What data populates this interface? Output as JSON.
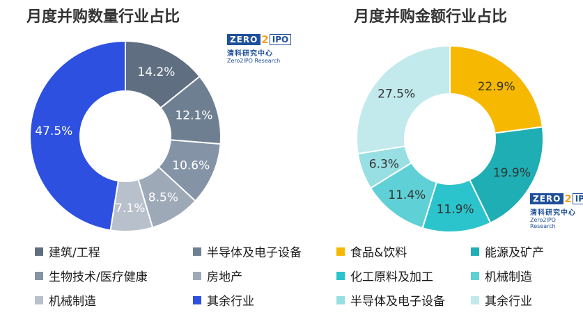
{
  "chart_data": [
    {
      "type": "pie",
      "title": "月度并购数量行业占比",
      "categories": [
        "建筑/工程",
        "半导体及电子设备",
        "生物技术/医疗健康",
        "房地产",
        "机械制造",
        "其余行业"
      ],
      "values": [
        14.2,
        12.1,
        10.6,
        8.5,
        7.1,
        47.5
      ],
      "labels": [
        "14.2%",
        "12.1%",
        "10.6%",
        "8.5%",
        "7.1%",
        "47.5%"
      ],
      "colors": [
        "#5f6e80",
        "#6f7f92",
        "#8493a5",
        "#9ea9b8",
        "#b8c0cb",
        "#2e50e0"
      ],
      "legend_position": "bottom"
    },
    {
      "type": "pie",
      "title": "月度并购金额行业占比",
      "categories": [
        "食品&饮料",
        "能源及矿产",
        "化工原料及加工",
        "机械制造",
        "半导体及电子设备",
        "其余行业"
      ],
      "values": [
        22.9,
        19.9,
        11.9,
        11.4,
        6.3,
        27.5
      ],
      "labels": [
        "22.9%",
        "19.9%",
        "11.9%",
        "11.4%",
        "6.3%",
        "27.5%"
      ],
      "colors": [
        "#f6b800",
        "#1eaeb4",
        "#2cc4cc",
        "#5fd0d6",
        "#98dfe3",
        "#c2e9ec"
      ],
      "legend_position": "bottom"
    }
  ],
  "logo": {
    "mark_left": "ZERO",
    "mark_mid": "2",
    "mark_right": "IPO",
    "cn": "清科研究中心",
    "en": "Zero2IPO Research"
  }
}
